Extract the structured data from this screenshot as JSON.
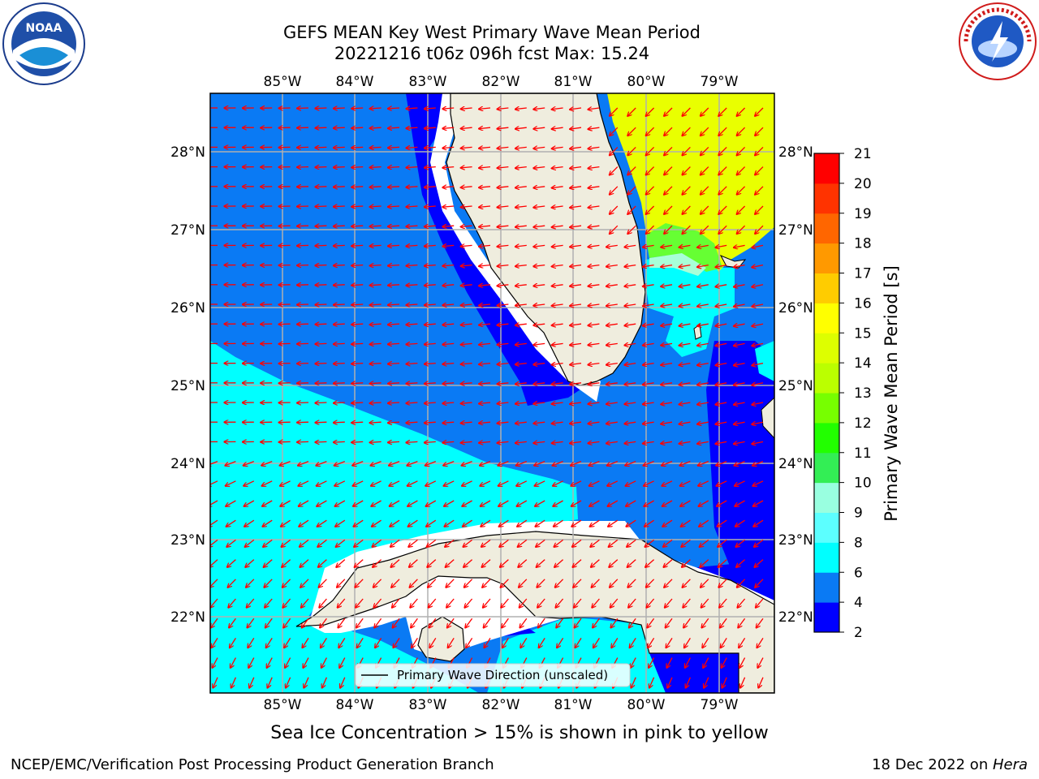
{
  "header": {
    "title_line1": "GEFS MEAN Key West Primary Wave Mean Period",
    "title_line2": "20221216 t06z 096h fcst   Max: 15.24"
  },
  "map": {
    "lon_labels": [
      "85°W",
      "84°W",
      "83°W",
      "82°W",
      "81°W",
      "80°W",
      "79°W"
    ],
    "lat_labels": [
      "28°N",
      "27°N",
      "26°N",
      "25°N",
      "24°N",
      "23°N",
      "22°N"
    ],
    "legend_label": "Primary Wave Direction (unscaled)",
    "ocean_base_color": "#0a7af4",
    "land_color": "#efedde",
    "arrow_color": "#ff0000",
    "grid_color": "#b0b0b0"
  },
  "colorbar": {
    "label": "Primary Wave Mean Period [s]",
    "ticks": [
      "2",
      "4",
      "6",
      "8",
      "9",
      "10",
      "11",
      "12",
      "13",
      "14",
      "15",
      "16",
      "17",
      "18",
      "19",
      "20",
      "21"
    ],
    "colors": [
      "#0000ff",
      "#0a7af4",
      "#00ffff",
      "#5cffff",
      "#99ffe0",
      "#33ee55",
      "#22ff00",
      "#77ff00",
      "#bbff00",
      "#ddff00",
      "#ffff00",
      "#ffcc00",
      "#ff9900",
      "#ff6600",
      "#ff3300",
      "#ff0000"
    ]
  },
  "logos": {
    "noaa_text": "NOAA",
    "nws_text": "NATIONAL WEATHER SERVICE"
  },
  "notes": {
    "ice": "Sea Ice Concentration > 15% is shown in pink to yellow"
  },
  "footer": {
    "left": "NCEP/EMC/Verification Post Processing Product Generation Branch",
    "right_prefix": "18 Dec 2022 on ",
    "right_host": "Hera"
  }
}
